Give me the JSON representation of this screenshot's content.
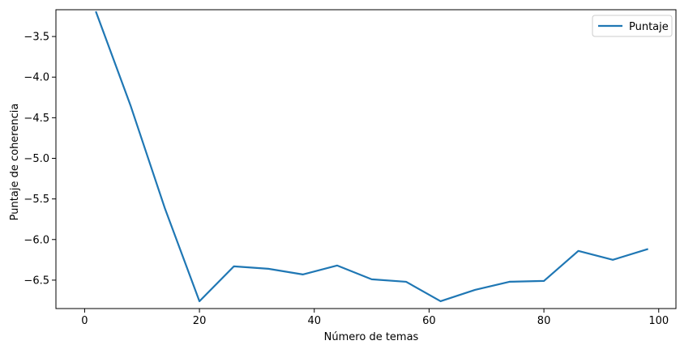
{
  "chart_data": {
    "type": "line",
    "title": "",
    "xlabel": "Número de temas",
    "ylabel": "Puntaje de coherencia",
    "xlim": [
      -5,
      103
    ],
    "ylim": [
      -6.85,
      -3.17
    ],
    "xticks": [
      0,
      20,
      40,
      60,
      80,
      100
    ],
    "yticks": [
      -3.5,
      -4.0,
      -4.5,
      -5.0,
      -5.5,
      -6.0,
      -6.5
    ],
    "xtick_labels": [
      "0",
      "20",
      "40",
      "60",
      "80",
      "100"
    ],
    "ytick_labels": [
      "−3.5",
      "−4.0",
      "−4.5",
      "−5.0",
      "−5.5",
      "−6.0",
      "−6.5"
    ],
    "grid": false,
    "legend_position": "top-right",
    "series": [
      {
        "name": "Puntaje",
        "color": "#1f77b4",
        "x": [
          2,
          8,
          14,
          20,
          26,
          32,
          38,
          44,
          50,
          56,
          62,
          68,
          74,
          80,
          86,
          92,
          98
        ],
        "y": [
          -3.2,
          -4.35,
          -5.62,
          -6.76,
          -6.33,
          -6.36,
          -6.43,
          -6.32,
          -6.49,
          -6.52,
          -6.76,
          -6.62,
          -6.52,
          -6.51,
          -6.14,
          -6.25,
          -6.12
        ]
      }
    ]
  }
}
